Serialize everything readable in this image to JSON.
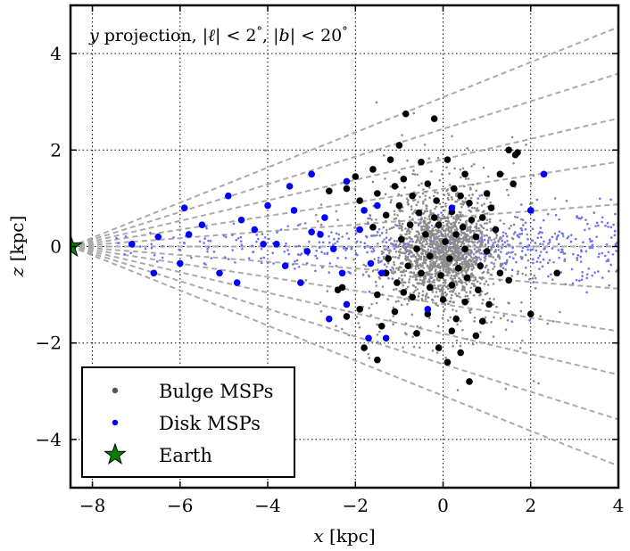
{
  "chart_data": {
    "type": "scatter",
    "title": "",
    "annotation": "y projection, |ℓ| < 2°, |b| < 20°",
    "annotation_parts": {
      "var": "y",
      "word": " projection, |",
      "ell": "ℓ",
      "rest1": "| < 2",
      "deg1": "°",
      "rest2": ", |",
      "b": "b",
      "rest3": "| < 20",
      "deg2": "°"
    },
    "xlabel": "x [kpc]",
    "xlabel_parts": {
      "var": "x",
      "unit": " [kpc]"
    },
    "ylabel": "z [kpc]",
    "ylabel_parts": {
      "var": "z",
      "unit": " [kpc]"
    },
    "xlim": [
      -8.5,
      4
    ],
    "ylim": [
      -5,
      5
    ],
    "xticks": [
      -8,
      -6,
      -4,
      -2,
      0,
      2,
      4
    ],
    "yticks": [
      -4,
      -2,
      0,
      2,
      4
    ],
    "xtick_labels": [
      "−8",
      "−6",
      "−4",
      "−2",
      "0",
      "2",
      "4"
    ],
    "ytick_labels": [
      "−4",
      "−2",
      "0",
      "2",
      "4"
    ],
    "grid": true,
    "legend_placement": "lower-left",
    "legend": [
      {
        "label": "Bulge MSPs",
        "color": "#555555",
        "marker": "small-dot"
      },
      {
        "label": "Disk MSPs",
        "color": "#0000ff",
        "marker": "small-dot"
      },
      {
        "label": "Earth",
        "color": "#008000",
        "marker": "star"
      }
    ],
    "colors": {
      "bulge_faint": "#8c8c8c",
      "disk_faint": "#6f6fff",
      "bulge_big": "#000000",
      "disk_big": "#0000ff",
      "earth": "#008000",
      "cone_lines": "#aaaaaa"
    },
    "earth": {
      "x": -8.5,
      "z": 0
    },
    "cone_lines_slope_deg": [
      -20,
      -16,
      -12,
      -8,
      -4,
      0,
      4,
      8,
      12,
      16,
      20
    ],
    "background_sample": {
      "bulge_center": [
        0,
        -0.1
      ],
      "bulge_sigma": [
        0.55,
        0.45
      ],
      "bulge_wide_sigma": [
        1.05,
        0.95
      ],
      "bulge_count": 1800,
      "disk_x_range": [
        -8,
        4
      ],
      "disk_z_sigma": 0.42,
      "disk_count": 520
    },
    "series": [
      {
        "name": "Bulge MSPs (detected)",
        "points": [
          [
            -0.85,
            2.75
          ],
          [
            -0.2,
            2.65
          ],
          [
            -1.0,
            2.1
          ],
          [
            1.5,
            2.0
          ],
          [
            -1.2,
            1.8
          ],
          [
            -0.5,
            1.75
          ],
          [
            0.1,
            1.8
          ],
          [
            -1.6,
            1.6
          ],
          [
            -0.9,
            1.4
          ],
          [
            0.5,
            1.5
          ],
          [
            1.3,
            1.5
          ],
          [
            -2.0,
            1.45
          ],
          [
            -0.35,
            1.3
          ],
          [
            0.25,
            1.2
          ],
          [
            1.6,
            1.3
          ],
          [
            -2.2,
            1.2
          ],
          [
            -1.5,
            1.1
          ],
          [
            -0.7,
            1.05
          ],
          [
            0.4,
            1.05
          ],
          [
            1.0,
            1.1
          ],
          [
            -2.6,
            1.15
          ],
          [
            -1.9,
            0.95
          ],
          [
            -1.0,
            0.85
          ],
          [
            -0.15,
            0.95
          ],
          [
            0.6,
            0.9
          ],
          [
            1.1,
            0.8
          ],
          [
            -1.3,
            0.65
          ],
          [
            -0.55,
            0.7
          ],
          [
            0.2,
            0.72
          ],
          [
            0.9,
            0.6
          ],
          [
            -0.75,
            0.45
          ],
          [
            -0.1,
            0.45
          ],
          [
            0.45,
            0.4
          ],
          [
            1.2,
            0.35
          ],
          [
            -1.6,
            0.4
          ],
          [
            -0.4,
            0.25
          ],
          [
            0.3,
            0.25
          ],
          [
            0.75,
            0.2
          ],
          [
            -0.95,
            0.15
          ],
          [
            0.05,
            0.1
          ],
          [
            -0.6,
            -0.05
          ],
          [
            0.5,
            -0.05
          ],
          [
            1.0,
            -0.1
          ],
          [
            -1.25,
            -0.25
          ],
          [
            -0.3,
            -0.2
          ],
          [
            0.15,
            -0.25
          ],
          [
            -0.8,
            -0.4
          ],
          [
            0.35,
            -0.45
          ],
          [
            0.85,
            -0.4
          ],
          [
            -0.5,
            -0.55
          ],
          [
            -0.05,
            -0.6
          ],
          [
            0.55,
            -0.65
          ],
          [
            1.3,
            -0.55
          ],
          [
            -1.05,
            -0.75
          ],
          [
            -0.3,
            -0.85
          ],
          [
            0.2,
            -0.8
          ],
          [
            0.8,
            -0.9
          ],
          [
            -1.5,
            -1.0
          ],
          [
            -0.7,
            -1.05
          ],
          [
            0.0,
            -1.1
          ],
          [
            0.5,
            -1.15
          ],
          [
            1.05,
            -1.2
          ],
          [
            -2.4,
            -0.9
          ],
          [
            -1.9,
            -1.3
          ],
          [
            -1.1,
            -1.35
          ],
          [
            -0.35,
            -1.4
          ],
          [
            0.3,
            -1.5
          ],
          [
            0.9,
            -1.55
          ],
          [
            -2.2,
            -1.45
          ],
          [
            -1.4,
            -1.65
          ],
          [
            -0.6,
            -1.8
          ],
          [
            0.2,
            -1.75
          ],
          [
            0.75,
            -1.85
          ],
          [
            -1.8,
            -2.1
          ],
          [
            -0.1,
            -2.1
          ],
          [
            0.4,
            -2.2
          ],
          [
            -1.5,
            -2.35
          ],
          [
            0.1,
            -2.4
          ],
          [
            0.6,
            -2.8
          ],
          [
            2.0,
            -1.4
          ],
          [
            2.6,
            -0.55
          ],
          [
            1.7,
            1.95
          ],
          [
            1.65,
            1.9
          ],
          [
            -2.3,
            -0.85
          ],
          [
            -1.3,
            -0.55
          ],
          [
            -0.9,
            -0.95
          ],
          [
            1.5,
            -0.7
          ],
          [
            -0.2,
            0.6
          ],
          [
            0.65,
            0.55
          ],
          [
            -1.1,
            1.25
          ]
        ]
      },
      {
        "name": "Disk MSPs (detected)",
        "points": [
          [
            -6.6,
            -0.55
          ],
          [
            -5.9,
            0.8
          ],
          [
            -4.9,
            1.05
          ],
          [
            -4.6,
            0.55
          ],
          [
            -4.7,
            -0.75
          ],
          [
            -3.5,
            1.25
          ],
          [
            -3.0,
            1.5
          ],
          [
            -2.2,
            1.35
          ],
          [
            -4.0,
            0.85
          ],
          [
            -5.5,
            0.45
          ],
          [
            -6.5,
            0.2
          ],
          [
            -7.1,
            0.05
          ],
          [
            -3.4,
            0.75
          ],
          [
            -2.7,
            0.6
          ],
          [
            -1.8,
            0.75
          ],
          [
            -1.5,
            0.85
          ],
          [
            -4.1,
            0.05
          ],
          [
            -3.0,
            0.3
          ],
          [
            -2.5,
            -0.05
          ],
          [
            -1.9,
            0.35
          ],
          [
            -3.6,
            -0.4
          ],
          [
            -3.25,
            -0.75
          ],
          [
            -2.3,
            -0.55
          ],
          [
            -1.65,
            -0.35
          ],
          [
            -5.1,
            -0.55
          ],
          [
            -6.0,
            -0.35
          ],
          [
            -2.6,
            -1.5
          ],
          [
            -1.7,
            -1.9
          ],
          [
            -1.3,
            -1.9
          ],
          [
            -0.35,
            -1.3
          ],
          [
            2.0,
            0.75
          ],
          [
            2.3,
            1.5
          ],
          [
            -2.8,
            0.25
          ],
          [
            -4.3,
            0.35
          ],
          [
            -5.8,
            0.25
          ],
          [
            -3.8,
            0.05
          ],
          [
            0.2,
            0.8
          ],
          [
            -1.4,
            -0.55
          ],
          [
            -2.2,
            -1.2
          ],
          [
            -3.1,
            -0.1
          ]
        ]
      }
    ]
  }
}
